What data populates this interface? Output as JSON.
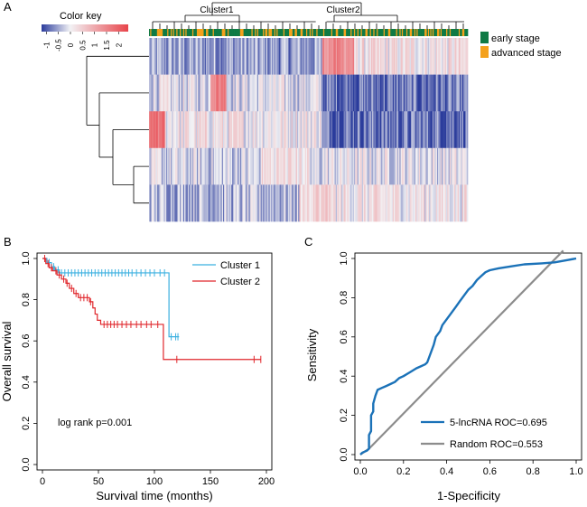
{
  "panels": {
    "a": "A",
    "b": "B",
    "c": "C"
  },
  "chart_data": [
    {
      "type": "heatmap",
      "panel": "A",
      "color_key": {
        "title": "Color key",
        "ticks": [
          "-1",
          "-0.5",
          "0",
          "0.5",
          "1",
          "1.5",
          "2"
        ],
        "range": [
          -1.2,
          2.4
        ],
        "colors": {
          "low": "#2b3c9c",
          "mid": "#f2f2f5",
          "high": "#e8444a"
        }
      },
      "clusters": [
        "Cluster1",
        "Cluster2"
      ],
      "cluster1_fraction": 0.54,
      "legend": [
        {
          "label": "early stage",
          "color": "#0f7a45"
        },
        {
          "label": "advanced stage",
          "color": "#f4a11c"
        }
      ],
      "rows": 5,
      "columns": 280,
      "row_bias": [
        [
          -0.55,
          0.2
        ],
        [
          -0.1,
          -0.85
        ],
        [
          0.15,
          -0.8
        ],
        [
          -0.2,
          -0.05
        ],
        [
          -0.35,
          0.15
        ]
      ],
      "hot_column_ranges": [
        {
          "row": 0,
          "from": 0.54,
          "to": 0.64,
          "value": 1.4
        },
        {
          "row": 1,
          "from": 0.19,
          "to": 0.24,
          "value": 1.6
        },
        {
          "row": 2,
          "from": 0.0,
          "to": 0.05,
          "value": 1.7
        },
        {
          "row": 3,
          "from": 0.35,
          "to": 0.5,
          "value": 0.25
        },
        {
          "row": 4,
          "from": 0.47,
          "to": 0.58,
          "value": 0.45
        }
      ]
    },
    {
      "type": "line",
      "subtype": "kaplan-meier",
      "panel": "B",
      "xlabel": "Survival time (months)",
      "ylabel": "Overall survival",
      "xlim": [
        0,
        200
      ],
      "ylim": [
        0,
        1
      ],
      "xticks": [
        0,
        50,
        100,
        150,
        200
      ],
      "yticks": [
        0.0,
        0.2,
        0.4,
        0.6,
        0.8,
        1.0
      ],
      "annotation": "log rank p=0.001",
      "series": [
        {
          "name": "Cluster 1",
          "color": "#3bb0e0",
          "steps": [
            [
              0,
              1.0
            ],
            [
              4,
              0.98
            ],
            [
              8,
              0.96
            ],
            [
              11,
              0.945
            ],
            [
              15,
              0.93
            ],
            [
              113,
              0.93
            ],
            [
              113,
              0.62
            ],
            [
              122,
              0.62
            ]
          ],
          "censor": [
            6,
            10,
            14,
            17,
            20,
            23,
            26,
            29,
            32,
            35,
            38,
            41,
            44,
            47,
            50,
            53,
            56,
            59,
            62,
            65,
            68,
            71,
            74,
            77,
            80,
            84,
            88,
            92,
            96,
            100,
            105,
            109,
            115,
            119,
            121
          ]
        },
        {
          "name": "Cluster 2",
          "color": "#e0262b",
          "steps": [
            [
              0,
              1.0
            ],
            [
              3,
              0.975
            ],
            [
              6,
              0.955
            ],
            [
              9,
              0.94
            ],
            [
              13,
              0.92
            ],
            [
              17,
              0.9
            ],
            [
              21,
              0.88
            ],
            [
              24,
              0.855
            ],
            [
              28,
              0.83
            ],
            [
              32,
              0.81
            ],
            [
              42,
              0.79
            ],
            [
              45,
              0.76
            ],
            [
              47,
              0.73
            ],
            [
              49,
              0.7
            ],
            [
              52,
              0.68
            ],
            [
              108,
              0.68
            ],
            [
              108,
              0.51
            ],
            [
              195,
              0.51
            ]
          ],
          "censor": [
            2,
            5,
            8,
            12,
            15,
            19,
            22,
            26,
            30,
            34,
            37,
            40,
            43,
            55,
            58,
            61,
            64,
            67,
            71,
            75,
            79,
            84,
            88,
            93,
            97,
            103,
            120,
            189,
            195
          ]
        }
      ]
    },
    {
      "type": "line",
      "subtype": "roc",
      "panel": "C",
      "xlabel": "1-Specificity",
      "ylabel": "Sensitivity",
      "xlim": [
        0,
        1
      ],
      "ylim": [
        0,
        1
      ],
      "xticks": [
        0.0,
        0.2,
        0.4,
        0.6,
        0.8,
        1.0
      ],
      "yticks": [
        0.0,
        0.2,
        0.4,
        0.6,
        0.8,
        1.0
      ],
      "series": [
        {
          "name": "5-lncRNA ROC=0.695",
          "color": "#1b72b8",
          "points": [
            [
              0,
              0
            ],
            [
              0.01,
              0.01
            ],
            [
              0.03,
              0.02
            ],
            [
              0.04,
              0.03
            ],
            [
              0.04,
              0.1
            ],
            [
              0.05,
              0.12
            ],
            [
              0.05,
              0.2
            ],
            [
              0.06,
              0.22
            ],
            [
              0.06,
              0.26
            ],
            [
              0.07,
              0.3
            ],
            [
              0.08,
              0.33
            ],
            [
              0.1,
              0.34
            ],
            [
              0.12,
              0.35
            ],
            [
              0.14,
              0.36
            ],
            [
              0.16,
              0.37
            ],
            [
              0.18,
              0.39
            ],
            [
              0.2,
              0.4
            ],
            [
              0.23,
              0.42
            ],
            [
              0.26,
              0.44
            ],
            [
              0.28,
              0.45
            ],
            [
              0.3,
              0.46
            ],
            [
              0.31,
              0.47
            ],
            [
              0.32,
              0.5
            ],
            [
              0.33,
              0.53
            ],
            [
              0.34,
              0.56
            ],
            [
              0.35,
              0.6
            ],
            [
              0.37,
              0.63
            ],
            [
              0.38,
              0.66
            ],
            [
              0.4,
              0.69
            ],
            [
              0.42,
              0.72
            ],
            [
              0.44,
              0.75
            ],
            [
              0.46,
              0.78
            ],
            [
              0.48,
              0.81
            ],
            [
              0.5,
              0.84
            ],
            [
              0.52,
              0.86
            ],
            [
              0.54,
              0.89
            ],
            [
              0.56,
              0.91
            ],
            [
              0.58,
              0.93
            ],
            [
              0.6,
              0.94
            ],
            [
              0.64,
              0.95
            ],
            [
              0.7,
              0.96
            ],
            [
              0.76,
              0.97
            ],
            [
              0.84,
              0.975
            ],
            [
              0.9,
              0.98
            ],
            [
              0.95,
              0.99
            ],
            [
              1.0,
              1.0
            ]
          ]
        },
        {
          "name": "Random ROC=0.553",
          "color": "#8c8c8c",
          "points": [
            [
              0,
              0
            ],
            [
              0.04,
              0.03
            ],
            [
              0.94,
              1.04
            ]
          ]
        }
      ]
    }
  ]
}
